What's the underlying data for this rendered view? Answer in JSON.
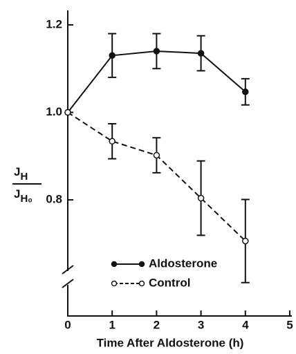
{
  "chart_data": {
    "type": "line",
    "ylabel": {
      "numerator": "J",
      "numerator_sub": "H",
      "denominator": "J",
      "denominator_sub": "H₀"
    },
    "xlabel": "Time After Aldosterone (h)",
    "x": [
      0,
      1,
      2,
      3,
      4
    ],
    "series": [
      {
        "name": "Aldosterone",
        "color": "#111111",
        "dash": "solid",
        "marker": "filled",
        "values": [
          1.0,
          1.13,
          1.14,
          1.135,
          1.047
        ],
        "errors": [
          null,
          0.05,
          0.04,
          0.04,
          0.03
        ]
      },
      {
        "name": "Control",
        "color": "#111111",
        "dash": "dashed",
        "marker": "open",
        "values": [
          1.0,
          0.934,
          0.902,
          0.804,
          0.706
        ],
        "errors": [
          null,
          0.04,
          0.04,
          0.085,
          0.095
        ]
      }
    ],
    "xlim": [
      0,
      5
    ],
    "xticks": [
      0,
      1,
      2,
      3,
      4,
      5
    ],
    "ylim": [
      0.62,
      1.23
    ],
    "yticks": [
      {
        "value": 0.8,
        "label": "0.8"
      },
      {
        "value": 1,
        "label": "1.0"
      },
      {
        "value": 1.2,
        "label": "1.2"
      }
    ],
    "axis_break": true,
    "legend": "lower center"
  }
}
